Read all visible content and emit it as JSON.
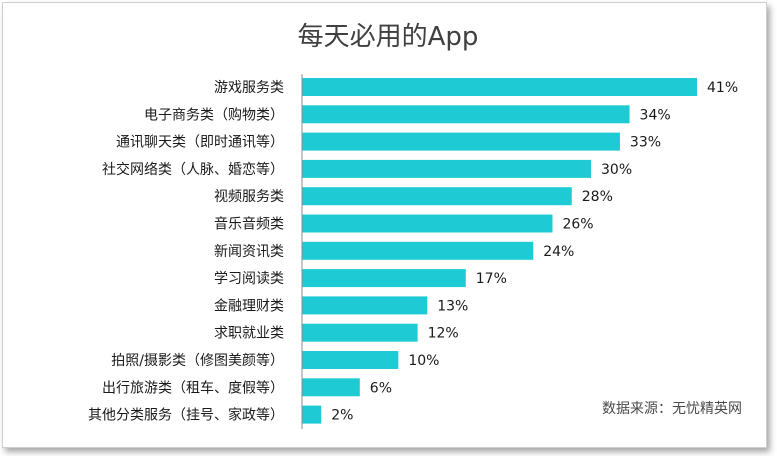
{
  "chart_data": {
    "type": "bar",
    "orientation": "horizontal",
    "title": "每天必用的App",
    "categories": [
      "游戏服务类",
      "电子商务类（购物类）",
      "通讯聊天类（即时通讯等）",
      "社交网络类（人脉、婚恋等）",
      "视频服务类",
      "音乐音频类",
      "新闻资讯类",
      "学习阅读类",
      "金融理财类",
      "求职就业类",
      "拍照/摄影类（修图美颜等）",
      "出行旅游类（租车、度假等）",
      "其他分类服务（挂号、家政等）"
    ],
    "values": [
      41,
      34,
      33,
      30,
      28,
      26,
      24,
      17,
      13,
      12,
      10,
      6,
      2
    ],
    "value_labels": [
      "41%",
      "34%",
      "33%",
      "30%",
      "28%",
      "26%",
      "24%",
      "17%",
      "13%",
      "12%",
      "10%",
      "6%",
      "2%"
    ],
    "xlim": [
      0,
      45
    ],
    "grid": false,
    "bar_color": "#1ecad3",
    "source": "数据来源：无忧精英网"
  }
}
